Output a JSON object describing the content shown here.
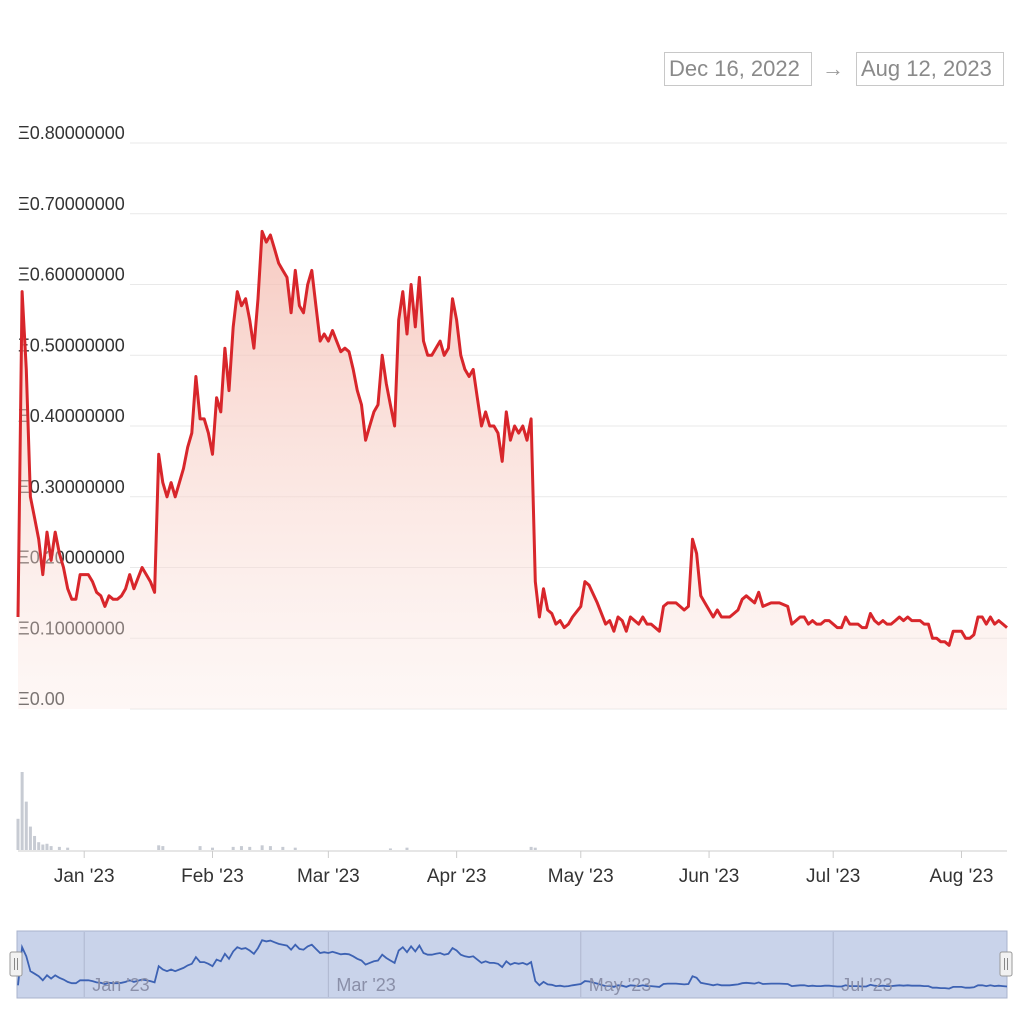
{
  "date_range": {
    "start": "Dec 16, 2022",
    "arrow": "→",
    "end": "Aug 12, 2023"
  },
  "colors": {
    "line": "#d8262b",
    "area": "#f4b9ad",
    "volume": "#c7cbd3",
    "navigator_line": "#3d62b3",
    "navigator_fill": "#c9d3ea",
    "grid": "#e9e9e9"
  },
  "chart_data": {
    "type": "area",
    "x_start": "2022-12-16",
    "x_end": "2023-08-12",
    "ylim": [
      0,
      0.8
    ],
    "y_ticks": [
      "Ξ0.00",
      "Ξ0.10000000",
      "Ξ0.20000000",
      "Ξ0.30000000",
      "Ξ0.40000000",
      "Ξ0.50000000",
      "Ξ0.60000000",
      "Ξ0.70000000",
      "Ξ0.80000000"
    ],
    "x_ticks": [
      {
        "date": "2023-01-01",
        "label": "Jan '23"
      },
      {
        "date": "2023-02-01",
        "label": "Feb '23"
      },
      {
        "date": "2023-03-01",
        "label": "Mar '23"
      },
      {
        "date": "2023-04-01",
        "label": "Apr '23"
      },
      {
        "date": "2023-05-01",
        "label": "May '23"
      },
      {
        "date": "2023-06-01",
        "label": "Jun '23"
      },
      {
        "date": "2023-07-01",
        "label": "Jul '23"
      },
      {
        "date": "2023-08-01",
        "label": "Aug '23"
      }
    ],
    "navigator_ticks": [
      {
        "date": "2023-01-01",
        "label": "Jan '23"
      },
      {
        "date": "2023-03-01",
        "label": "Mar '23"
      },
      {
        "date": "2023-05-01",
        "label": "May '23"
      },
      {
        "date": "2023-07-01",
        "label": "Jul '23"
      }
    ],
    "series": [
      {
        "values": [
          [
            "2022-12-16",
            0.13
          ],
          [
            "2022-12-17",
            0.59
          ],
          [
            "2022-12-18",
            0.48
          ],
          [
            "2022-12-19",
            0.3
          ],
          [
            "2022-12-20",
            0.27
          ],
          [
            "2022-12-21",
            0.24
          ],
          [
            "2022-12-22",
            0.19
          ],
          [
            "2022-12-23",
            0.25
          ],
          [
            "2022-12-24",
            0.21
          ],
          [
            "2022-12-25",
            0.25
          ],
          [
            "2022-12-26",
            0.22
          ],
          [
            "2022-12-27",
            0.2
          ],
          [
            "2022-12-28",
            0.17
          ],
          [
            "2022-12-29",
            0.155
          ],
          [
            "2022-12-30",
            0.155
          ],
          [
            "2022-12-31",
            0.19
          ],
          [
            "2023-01-02",
            0.19
          ],
          [
            "2023-01-03",
            0.18
          ],
          [
            "2023-01-04",
            0.165
          ],
          [
            "2023-01-05",
            0.16
          ],
          [
            "2023-01-06",
            0.145
          ],
          [
            "2023-01-07",
            0.16
          ],
          [
            "2023-01-08",
            0.155
          ],
          [
            "2023-01-09",
            0.155
          ],
          [
            "2023-01-10",
            0.16
          ],
          [
            "2023-01-11",
            0.17
          ],
          [
            "2023-01-12",
            0.19
          ],
          [
            "2023-01-13",
            0.17
          ],
          [
            "2023-01-14",
            0.185
          ],
          [
            "2023-01-15",
            0.2
          ],
          [
            "2023-01-16",
            0.19
          ],
          [
            "2023-01-17",
            0.18
          ],
          [
            "2023-01-18",
            0.165
          ],
          [
            "2023-01-19",
            0.36
          ],
          [
            "2023-01-20",
            0.32
          ],
          [
            "2023-01-21",
            0.3
          ],
          [
            "2023-01-22",
            0.32
          ],
          [
            "2023-01-23",
            0.3
          ],
          [
            "2023-01-24",
            0.32
          ],
          [
            "2023-01-25",
            0.34
          ],
          [
            "2023-01-26",
            0.37
          ],
          [
            "2023-01-27",
            0.39
          ],
          [
            "2023-01-28",
            0.47
          ],
          [
            "2023-01-29",
            0.41
          ],
          [
            "2023-01-30",
            0.41
          ],
          [
            "2023-01-31",
            0.39
          ],
          [
            "2023-02-01",
            0.36
          ],
          [
            "2023-02-02",
            0.44
          ],
          [
            "2023-02-03",
            0.42
          ],
          [
            "2023-02-04",
            0.51
          ],
          [
            "2023-02-05",
            0.45
          ],
          [
            "2023-02-06",
            0.54
          ],
          [
            "2023-02-07",
            0.59
          ],
          [
            "2023-02-08",
            0.57
          ],
          [
            "2023-02-09",
            0.58
          ],
          [
            "2023-02-10",
            0.55
          ],
          [
            "2023-02-11",
            0.51
          ],
          [
            "2023-02-12",
            0.58
          ],
          [
            "2023-02-13",
            0.675
          ],
          [
            "2023-02-14",
            0.66
          ],
          [
            "2023-02-15",
            0.67
          ],
          [
            "2023-02-16",
            0.65
          ],
          [
            "2023-02-17",
            0.63
          ],
          [
            "2023-02-18",
            0.62
          ],
          [
            "2023-02-19",
            0.61
          ],
          [
            "2023-02-20",
            0.56
          ],
          [
            "2023-02-21",
            0.62
          ],
          [
            "2023-02-22",
            0.57
          ],
          [
            "2023-02-23",
            0.56
          ],
          [
            "2023-02-24",
            0.6
          ],
          [
            "2023-02-25",
            0.62
          ],
          [
            "2023-02-26",
            0.57
          ],
          [
            "2023-02-27",
            0.52
          ],
          [
            "2023-02-28",
            0.53
          ],
          [
            "2023-03-01",
            0.52
          ],
          [
            "2023-03-02",
            0.535
          ],
          [
            "2023-03-03",
            0.52
          ],
          [
            "2023-03-04",
            0.505
          ],
          [
            "2023-03-05",
            0.51
          ],
          [
            "2023-03-06",
            0.505
          ],
          [
            "2023-03-07",
            0.48
          ],
          [
            "2023-03-08",
            0.45
          ],
          [
            "2023-03-09",
            0.43
          ],
          [
            "2023-03-10",
            0.38
          ],
          [
            "2023-03-11",
            0.4
          ],
          [
            "2023-03-12",
            0.42
          ],
          [
            "2023-03-13",
            0.43
          ],
          [
            "2023-03-14",
            0.5
          ],
          [
            "2023-03-15",
            0.46
          ],
          [
            "2023-03-16",
            0.43
          ],
          [
            "2023-03-17",
            0.4
          ],
          [
            "2023-03-18",
            0.55
          ],
          [
            "2023-03-19",
            0.59
          ],
          [
            "2023-03-20",
            0.53
          ],
          [
            "2023-03-21",
            0.6
          ],
          [
            "2023-03-22",
            0.54
          ],
          [
            "2023-03-23",
            0.61
          ],
          [
            "2023-03-24",
            0.52
          ],
          [
            "2023-03-25",
            0.5
          ],
          [
            "2023-03-26",
            0.5
          ],
          [
            "2023-03-27",
            0.51
          ],
          [
            "2023-03-28",
            0.52
          ],
          [
            "2023-03-29",
            0.5
          ],
          [
            "2023-03-30",
            0.51
          ],
          [
            "2023-03-31",
            0.58
          ],
          [
            "2023-04-01",
            0.55
          ],
          [
            "2023-04-02",
            0.5
          ],
          [
            "2023-04-03",
            0.48
          ],
          [
            "2023-04-04",
            0.47
          ],
          [
            "2023-04-05",
            0.48
          ],
          [
            "2023-04-06",
            0.44
          ],
          [
            "2023-04-07",
            0.4
          ],
          [
            "2023-04-08",
            0.42
          ],
          [
            "2023-04-09",
            0.4
          ],
          [
            "2023-04-10",
            0.4
          ],
          [
            "2023-04-11",
            0.39
          ],
          [
            "2023-04-12",
            0.35
          ],
          [
            "2023-04-13",
            0.42
          ],
          [
            "2023-04-14",
            0.38
          ],
          [
            "2023-04-15",
            0.4
          ],
          [
            "2023-04-16",
            0.39
          ],
          [
            "2023-04-17",
            0.4
          ],
          [
            "2023-04-18",
            0.38
          ],
          [
            "2023-04-19",
            0.41
          ],
          [
            "2023-04-20",
            0.18
          ],
          [
            "2023-04-21",
            0.13
          ],
          [
            "2023-04-22",
            0.17
          ],
          [
            "2023-04-23",
            0.14
          ],
          [
            "2023-04-24",
            0.135
          ],
          [
            "2023-04-25",
            0.12
          ],
          [
            "2023-04-26",
            0.125
          ],
          [
            "2023-04-27",
            0.115
          ],
          [
            "2023-04-28",
            0.12
          ],
          [
            "2023-04-29",
            0.13
          ],
          [
            "2023-05-01",
            0.145
          ],
          [
            "2023-05-02",
            0.18
          ],
          [
            "2023-05-03",
            0.175
          ],
          [
            "2023-05-05",
            0.15
          ],
          [
            "2023-05-07",
            0.12
          ],
          [
            "2023-05-08",
            0.125
          ],
          [
            "2023-05-09",
            0.11
          ],
          [
            "2023-05-10",
            0.13
          ],
          [
            "2023-05-11",
            0.125
          ],
          [
            "2023-05-12",
            0.11
          ],
          [
            "2023-05-13",
            0.13
          ],
          [
            "2023-05-14",
            0.125
          ],
          [
            "2023-05-15",
            0.12
          ],
          [
            "2023-05-16",
            0.13
          ],
          [
            "2023-05-17",
            0.12
          ],
          [
            "2023-05-18",
            0.12
          ],
          [
            "2023-05-20",
            0.11
          ],
          [
            "2023-05-21",
            0.145
          ],
          [
            "2023-05-22",
            0.15
          ],
          [
            "2023-05-24",
            0.15
          ],
          [
            "2023-05-25",
            0.145
          ],
          [
            "2023-05-26",
            0.14
          ],
          [
            "2023-05-27",
            0.145
          ],
          [
            "2023-05-28",
            0.24
          ],
          [
            "2023-05-29",
            0.22
          ],
          [
            "2023-05-30",
            0.16
          ],
          [
            "2023-05-31",
            0.15
          ],
          [
            "2023-06-01",
            0.14
          ],
          [
            "2023-06-02",
            0.13
          ],
          [
            "2023-06-03",
            0.14
          ],
          [
            "2023-06-04",
            0.13
          ],
          [
            "2023-06-05",
            0.13
          ],
          [
            "2023-06-06",
            0.13
          ],
          [
            "2023-06-07",
            0.135
          ],
          [
            "2023-06-08",
            0.14
          ],
          [
            "2023-06-09",
            0.155
          ],
          [
            "2023-06-10",
            0.16
          ],
          [
            "2023-06-11",
            0.155
          ],
          [
            "2023-06-12",
            0.15
          ],
          [
            "2023-06-13",
            0.165
          ],
          [
            "2023-06-14",
            0.145
          ],
          [
            "2023-06-16",
            0.15
          ],
          [
            "2023-06-18",
            0.15
          ],
          [
            "2023-06-20",
            0.145
          ],
          [
            "2023-06-21",
            0.12
          ],
          [
            "2023-06-22",
            0.125
          ],
          [
            "2023-06-23",
            0.13
          ],
          [
            "2023-06-24",
            0.13
          ],
          [
            "2023-06-25",
            0.12
          ],
          [
            "2023-06-26",
            0.125
          ],
          [
            "2023-06-27",
            0.12
          ],
          [
            "2023-06-28",
            0.12
          ],
          [
            "2023-06-29",
            0.125
          ],
          [
            "2023-06-30",
            0.125
          ],
          [
            "2023-07-01",
            0.12
          ],
          [
            "2023-07-02",
            0.115
          ],
          [
            "2023-07-03",
            0.115
          ],
          [
            "2023-07-04",
            0.13
          ],
          [
            "2023-07-05",
            0.12
          ],
          [
            "2023-07-06",
            0.12
          ],
          [
            "2023-07-07",
            0.12
          ],
          [
            "2023-07-08",
            0.115
          ],
          [
            "2023-07-09",
            0.115
          ],
          [
            "2023-07-10",
            0.135
          ],
          [
            "2023-07-11",
            0.125
          ],
          [
            "2023-07-12",
            0.12
          ],
          [
            "2023-07-13",
            0.125
          ],
          [
            "2023-07-14",
            0.12
          ],
          [
            "2023-07-15",
            0.12
          ],
          [
            "2023-07-16",
            0.125
          ],
          [
            "2023-07-17",
            0.13
          ],
          [
            "2023-07-18",
            0.125
          ],
          [
            "2023-07-19",
            0.13
          ],
          [
            "2023-07-20",
            0.125
          ],
          [
            "2023-07-22",
            0.125
          ],
          [
            "2023-07-23",
            0.12
          ],
          [
            "2023-07-24",
            0.12
          ],
          [
            "2023-07-25",
            0.1
          ],
          [
            "2023-07-26",
            0.1
          ],
          [
            "2023-07-27",
            0.095
          ],
          [
            "2023-07-28",
            0.095
          ],
          [
            "2023-07-29",
            0.09
          ],
          [
            "2023-07-30",
            0.11
          ],
          [
            "2023-07-31",
            0.11
          ],
          [
            "2023-08-01",
            0.11
          ],
          [
            "2023-08-02",
            0.1
          ],
          [
            "2023-08-03",
            0.1
          ],
          [
            "2023-08-04",
            0.105
          ],
          [
            "2023-08-05",
            0.13
          ],
          [
            "2023-08-06",
            0.13
          ],
          [
            "2023-08-07",
            0.12
          ],
          [
            "2023-08-08",
            0.13
          ],
          [
            "2023-08-09",
            0.12
          ],
          [
            "2023-08-10",
            0.125
          ],
          [
            "2023-08-11",
            0.12
          ],
          [
            "2023-08-12",
            0.115
          ]
        ]
      }
    ],
    "volume": [
      [
        "2022-12-16",
        0.4
      ],
      [
        "2022-12-17",
        1.0
      ],
      [
        "2022-12-18",
        0.62
      ],
      [
        "2022-12-19",
        0.3
      ],
      [
        "2022-12-20",
        0.18
      ],
      [
        "2022-12-21",
        0.1
      ],
      [
        "2022-12-22",
        0.07
      ],
      [
        "2022-12-23",
        0.08
      ],
      [
        "2022-12-24",
        0.05
      ],
      [
        "2022-12-26",
        0.04
      ],
      [
        "2022-12-28",
        0.03
      ],
      [
        "2023-01-19",
        0.06
      ],
      [
        "2023-01-20",
        0.05
      ],
      [
        "2023-01-29",
        0.05
      ],
      [
        "2023-02-01",
        0.03
      ],
      [
        "2023-02-06",
        0.04
      ],
      [
        "2023-02-08",
        0.05
      ],
      [
        "2023-02-10",
        0.04
      ],
      [
        "2023-02-13",
        0.06
      ],
      [
        "2023-02-15",
        0.05
      ],
      [
        "2023-02-18",
        0.04
      ],
      [
        "2023-02-21",
        0.03
      ],
      [
        "2023-03-16",
        0.02
      ],
      [
        "2023-03-20",
        0.03
      ],
      [
        "2023-04-19",
        0.04
      ],
      [
        "2023-04-20",
        0.03
      ]
    ]
  }
}
